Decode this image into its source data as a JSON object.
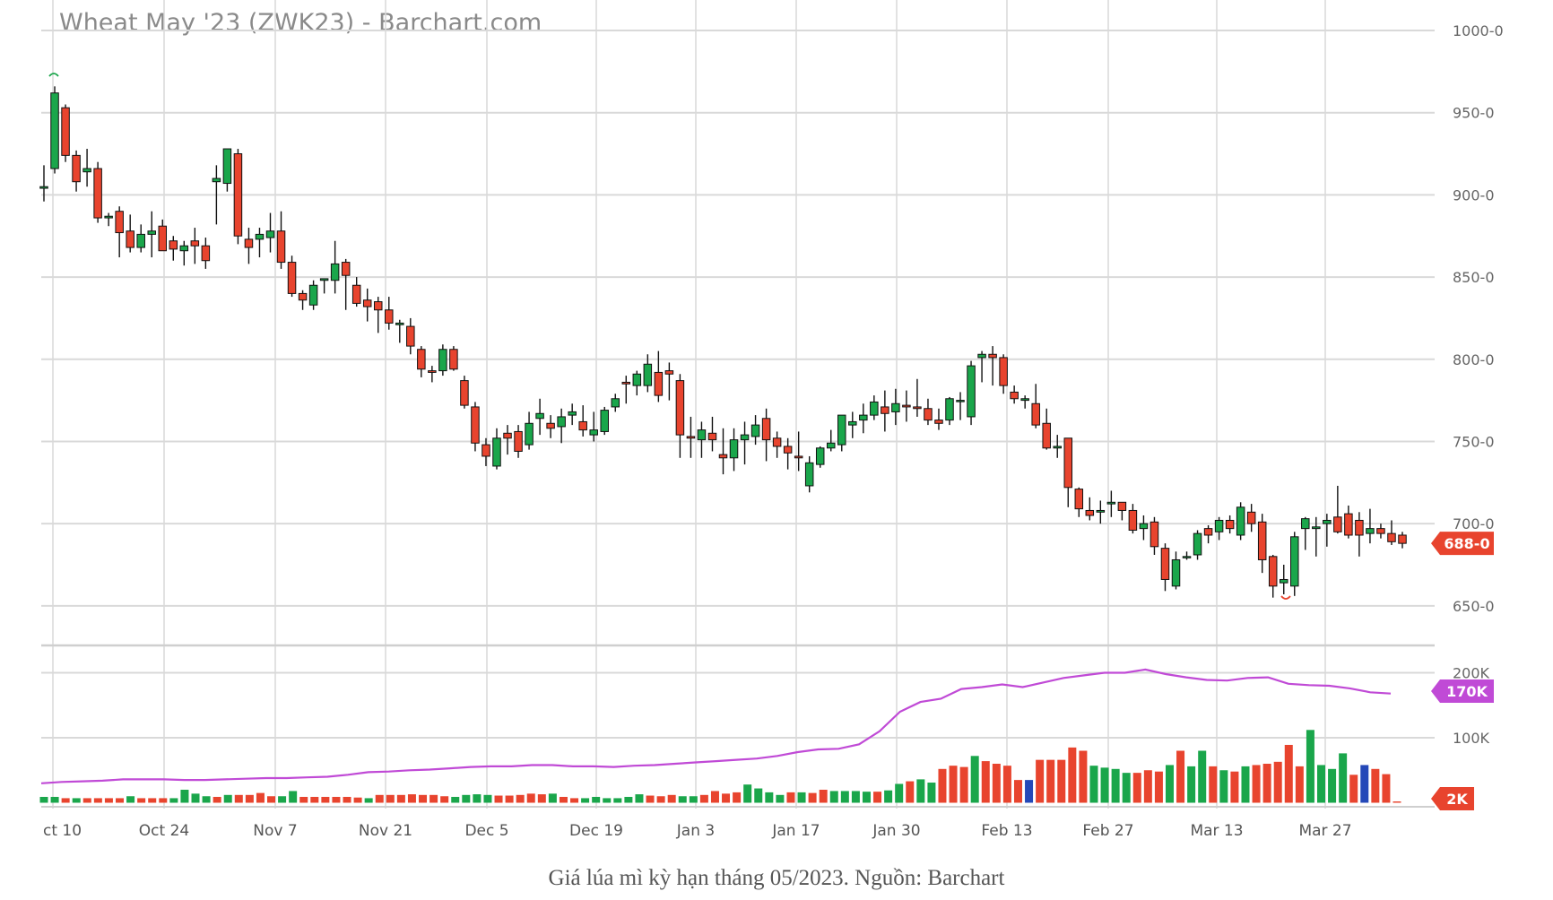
{
  "title": "Wheat May '23 (ZWK23) - Barchart.com",
  "caption": "Giá lúa mì kỳ hạn tháng 05/2023. Nguồn: Barchart",
  "colors": {
    "up": "#1aa64b",
    "down": "#e8442e",
    "volume_highlight": "#2448b8",
    "volume_avg": "#c04ad6",
    "grid": "#d9d9d9"
  },
  "chart_data": [
    {
      "type": "candlestick",
      "title": "Wheat May '23 (ZWK23) - Barchart.com",
      "y_ticks": [
        "1000-0",
        "950-0",
        "900-0",
        "850-0",
        "800-0",
        "750-0",
        "700-0",
        "650-0"
      ],
      "ylim": [
        627,
        1012
      ],
      "x_ticks": [
        "ct 10",
        "Oct 24",
        "Nov 7",
        "Nov 21",
        "Dec 5",
        "Dec 19",
        "Jan 3",
        "Jan 17",
        "Jan 30",
        "Feb 13",
        "Feb 27",
        "Mar 13",
        "Mar 27"
      ],
      "grid": true,
      "last_price_label": "688-0",
      "last_price": 688,
      "ohlc": [
        [
          904,
          918,
          896,
          905
        ],
        [
          916,
          966,
          913,
          962
        ],
        [
          953,
          955,
          920,
          924
        ],
        [
          924,
          927,
          902,
          908
        ],
        [
          914,
          928,
          905,
          916
        ],
        [
          916,
          920,
          883,
          886
        ],
        [
          886,
          889,
          881,
          887
        ],
        [
          890,
          893,
          862,
          877
        ],
        [
          878,
          888,
          865,
          868
        ],
        [
          868,
          882,
          865,
          876
        ],
        [
          876,
          890,
          862,
          878
        ],
        [
          881,
          885,
          866,
          866
        ],
        [
          872,
          875,
          860,
          867
        ],
        [
          866,
          872,
          857,
          869
        ],
        [
          872,
          880,
          858,
          869
        ],
        [
          869,
          874,
          855,
          860
        ],
        [
          908,
          918,
          882,
          910
        ],
        [
          907,
          928,
          902,
          928
        ],
        [
          925,
          928,
          870,
          875
        ],
        [
          873,
          880,
          858,
          868
        ],
        [
          873,
          880,
          862,
          876
        ],
        [
          874,
          889,
          865,
          878
        ],
        [
          878,
          890,
          855,
          859
        ],
        [
          859,
          863,
          838,
          840
        ],
        [
          840,
          842,
          830,
          836
        ],
        [
          833,
          848,
          830,
          845
        ],
        [
          848,
          849,
          840,
          849
        ],
        [
          848,
          872,
          840,
          858
        ],
        [
          859,
          861,
          830,
          851
        ],
        [
          845,
          850,
          832,
          834
        ],
        [
          836,
          843,
          823,
          832
        ],
        [
          835,
          838,
          816,
          830
        ],
        [
          830,
          838,
          818,
          822
        ],
        [
          821,
          824,
          810,
          822
        ],
        [
          820,
          825,
          803,
          808
        ],
        [
          806,
          808,
          789,
          794
        ],
        [
          793,
          796,
          786,
          792
        ],
        [
          793,
          809,
          790,
          806
        ],
        [
          806,
          808,
          793,
          794
        ],
        [
          787,
          790,
          770,
          772
        ],
        [
          771,
          774,
          744,
          749
        ],
        [
          748,
          752,
          735,
          741
        ],
        [
          735,
          758,
          733,
          752
        ],
        [
          755,
          760,
          742,
          752
        ],
        [
          756,
          760,
          740,
          744
        ],
        [
          748,
          768,
          745,
          761
        ],
        [
          764,
          776,
          754,
          767
        ],
        [
          761,
          766,
          752,
          758
        ],
        [
          759,
          770,
          749,
          765
        ],
        [
          766,
          773,
          760,
          768
        ],
        [
          762,
          772,
          753,
          757
        ],
        [
          754,
          768,
          750,
          757
        ],
        [
          756,
          771,
          754,
          769
        ],
        [
          771,
          779,
          768,
          776
        ],
        [
          786,
          790,
          773,
          785
        ],
        [
          784,
          793,
          778,
          791
        ],
        [
          784,
          803,
          780,
          797
        ],
        [
          792,
          805,
          774,
          778
        ],
        [
          793,
          798,
          775,
          791
        ],
        [
          787,
          791,
          740,
          754
        ],
        [
          753,
          765,
          740,
          752
        ],
        [
          751,
          762,
          740,
          757
        ],
        [
          755,
          765,
          744,
          751
        ],
        [
          742,
          758,
          730,
          740
        ],
        [
          740,
          758,
          732,
          751
        ],
        [
          751,
          762,
          736,
          754
        ],
        [
          753,
          766,
          748,
          760
        ],
        [
          764,
          770,
          738,
          751
        ],
        [
          752,
          756,
          740,
          747
        ],
        [
          747,
          752,
          733,
          743
        ],
        [
          741,
          756,
          732,
          740
        ],
        [
          723,
          741,
          719,
          737
        ],
        [
          736,
          747,
          734,
          746
        ],
        [
          746,
          757,
          744,
          749
        ],
        [
          748,
          763,
          744,
          766
        ],
        [
          760,
          768,
          752,
          762
        ],
        [
          763,
          773,
          755,
          766
        ],
        [
          766,
          778,
          763,
          774
        ],
        [
          771,
          781,
          756,
          767
        ],
        [
          768,
          782,
          760,
          773
        ],
        [
          772,
          781,
          762,
          771
        ],
        [
          771,
          788,
          765,
          770
        ],
        [
          770,
          776,
          760,
          763
        ],
        [
          763,
          770,
          757,
          761
        ],
        [
          763,
          777,
          760,
          776
        ],
        [
          775,
          780,
          763,
          775
        ],
        [
          765,
          799,
          760,
          796
        ],
        [
          801,
          805,
          786,
          803
        ],
        [
          803,
          808,
          784,
          801
        ],
        [
          801,
          803,
          779,
          784
        ],
        [
          780,
          784,
          773,
          776
        ],
        [
          775,
          778,
          770,
          776
        ],
        [
          773,
          785,
          758,
          760
        ],
        [
          761,
          770,
          745,
          746
        ],
        [
          746,
          754,
          740,
          747
        ],
        [
          752,
          752,
          710,
          722
        ],
        [
          721,
          722,
          704,
          709
        ],
        [
          708,
          716,
          702,
          705
        ],
        [
          707,
          714,
          700,
          708
        ],
        [
          712,
          720,
          704,
          713
        ],
        [
          713,
          713,
          702,
          708
        ],
        [
          708,
          712,
          694,
          696
        ],
        [
          697,
          705,
          690,
          700
        ],
        [
          701,
          704,
          681,
          686
        ],
        [
          685,
          688,
          659,
          666
        ],
        [
          662,
          683,
          660,
          678
        ],
        [
          680,
          683,
          678,
          680
        ],
        [
          681,
          696,
          678,
          694
        ],
        [
          697,
          699,
          688,
          693
        ],
        [
          695,
          704,
          690,
          702
        ],
        [
          702,
          705,
          694,
          697
        ],
        [
          693,
          713,
          690,
          710
        ],
        [
          707,
          712,
          695,
          700
        ],
        [
          701,
          706,
          670,
          678
        ],
        [
          680,
          681,
          655,
          662
        ],
        [
          664,
          675,
          657,
          666
        ],
        [
          662,
          695,
          656,
          692
        ],
        [
          697,
          704,
          684,
          703
        ],
        [
          697,
          704,
          680,
          698
        ],
        [
          700,
          706,
          686,
          702
        ],
        [
          704,
          723,
          694,
          695
        ],
        [
          706,
          711,
          691,
          693
        ],
        [
          702,
          707,
          680,
          693
        ],
        [
          694,
          709,
          688,
          697
        ],
        [
          697,
          700,
          691,
          694
        ],
        [
          694,
          702,
          687,
          689
        ],
        [
          693,
          695,
          685,
          688
        ]
      ]
    },
    {
      "type": "bar",
      "title": "Volume",
      "y_ticks": [
        "200K",
        "100K"
      ],
      "last_volume_label": "2K",
      "avg_volume_label": "170K",
      "volume": [
        [
          9,
          "up"
        ],
        [
          9,
          "up"
        ],
        [
          7,
          "down"
        ],
        [
          7,
          "up"
        ],
        [
          7,
          "down"
        ],
        [
          7,
          "down"
        ],
        [
          7,
          "down"
        ],
        [
          7,
          "down"
        ],
        [
          10,
          "up"
        ],
        [
          7,
          "down"
        ],
        [
          7,
          "down"
        ],
        [
          7,
          "down"
        ],
        [
          7,
          "up"
        ],
        [
          20,
          "up"
        ],
        [
          14,
          "up"
        ],
        [
          10,
          "up"
        ],
        [
          9,
          "down"
        ],
        [
          12,
          "up"
        ],
        [
          12,
          "down"
        ],
        [
          12,
          "down"
        ],
        [
          15,
          "down"
        ],
        [
          10,
          "down"
        ],
        [
          10,
          "up"
        ],
        [
          18,
          "up"
        ],
        [
          9,
          "down"
        ],
        [
          9,
          "down"
        ],
        [
          9,
          "down"
        ],
        [
          9,
          "down"
        ],
        [
          9,
          "down"
        ],
        [
          8,
          "down"
        ],
        [
          7,
          "up"
        ],
        [
          12,
          "down"
        ],
        [
          12,
          "down"
        ],
        [
          12,
          "down"
        ],
        [
          13,
          "down"
        ],
        [
          12,
          "down"
        ],
        [
          12,
          "down"
        ],
        [
          10,
          "down"
        ],
        [
          9,
          "up"
        ],
        [
          12,
          "up"
        ],
        [
          13,
          "up"
        ],
        [
          12,
          "up"
        ],
        [
          11,
          "down"
        ],
        [
          11,
          "down"
        ],
        [
          12,
          "down"
        ],
        [
          14,
          "down"
        ],
        [
          13,
          "down"
        ],
        [
          14,
          "up"
        ],
        [
          9,
          "down"
        ],
        [
          7,
          "down"
        ],
        [
          7,
          "up"
        ],
        [
          9,
          "up"
        ],
        [
          7,
          "up"
        ],
        [
          7,
          "up"
        ],
        [
          9,
          "up"
        ],
        [
          13,
          "up"
        ],
        [
          11,
          "down"
        ],
        [
          10,
          "down"
        ],
        [
          12,
          "down"
        ],
        [
          10,
          "up"
        ],
        [
          10,
          "up"
        ],
        [
          12,
          "down"
        ],
        [
          18,
          "down"
        ],
        [
          14,
          "down"
        ],
        [
          16,
          "down"
        ],
        [
          28,
          "up"
        ],
        [
          22,
          "up"
        ],
        [
          16,
          "up"
        ],
        [
          12,
          "up"
        ],
        [
          16,
          "down"
        ],
        [
          16,
          "up"
        ],
        [
          15,
          "down"
        ],
        [
          20,
          "down"
        ],
        [
          18,
          "up"
        ],
        [
          18,
          "up"
        ],
        [
          18,
          "up"
        ],
        [
          17,
          "up"
        ],
        [
          17,
          "down"
        ],
        [
          19,
          "up"
        ],
        [
          29,
          "up"
        ],
        [
          33,
          "down"
        ],
        [
          36,
          "up"
        ],
        [
          31,
          "up"
        ],
        [
          52,
          "down"
        ],
        [
          57,
          "down"
        ],
        [
          55,
          "down"
        ],
        [
          72,
          "up"
        ],
        [
          64,
          "down"
        ],
        [
          60,
          "down"
        ],
        [
          57,
          "down"
        ],
        [
          35,
          "down"
        ],
        [
          35,
          "highlight"
        ],
        [
          66,
          "down"
        ],
        [
          66,
          "down"
        ],
        [
          66,
          "down"
        ],
        [
          85,
          "down"
        ],
        [
          80,
          "down"
        ],
        [
          57,
          "up"
        ],
        [
          54,
          "up"
        ],
        [
          52,
          "up"
        ],
        [
          46,
          "up"
        ],
        [
          46,
          "down"
        ],
        [
          50,
          "down"
        ],
        [
          48,
          "down"
        ],
        [
          58,
          "up"
        ],
        [
          80,
          "down"
        ],
        [
          56,
          "up"
        ],
        [
          80,
          "up"
        ],
        [
          56,
          "down"
        ],
        [
          50,
          "up"
        ],
        [
          48,
          "down"
        ],
        [
          56,
          "up"
        ],
        [
          58,
          "down"
        ],
        [
          60,
          "down"
        ],
        [
          63,
          "down"
        ],
        [
          89,
          "down"
        ],
        [
          56,
          "down"
        ],
        [
          112,
          "up"
        ],
        [
          58,
          "up"
        ],
        [
          52,
          "up"
        ],
        [
          76,
          "up"
        ],
        [
          43,
          "down"
        ],
        [
          58,
          "highlight"
        ],
        [
          52,
          "down"
        ],
        [
          44,
          "down"
        ],
        [
          2,
          "down"
        ]
      ],
      "avg_volume": [
        30,
        32,
        33,
        34,
        36,
        36,
        36,
        35,
        35,
        36,
        37,
        38,
        38,
        39,
        40,
        43,
        47,
        48,
        50,
        51,
        53,
        55,
        56,
        56,
        58,
        58,
        56,
        56,
        55,
        57,
        58,
        60,
        62,
        64,
        66,
        68,
        72,
        78,
        82,
        83,
        90,
        110,
        140,
        155,
        160,
        175,
        178,
        182,
        178,
        185,
        192,
        196,
        200,
        200,
        205,
        198,
        193,
        189,
        188,
        192,
        193,
        183,
        181,
        180,
        176,
        170,
        168
      ]
    }
  ]
}
